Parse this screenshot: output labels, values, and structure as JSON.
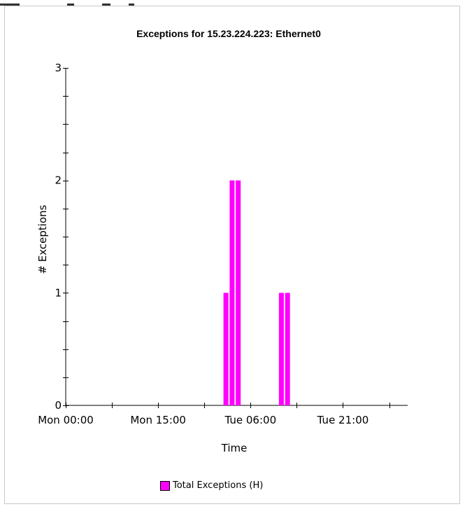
{
  "colors": {
    "bar": "#ff00ff",
    "axis": "#000000",
    "panel_border": "#c8c8c8"
  },
  "chart_data": {
    "type": "bar",
    "title": "Exceptions for 15.23.224.223: Ethernet0",
    "xlabel": "Time",
    "ylabel": "# Exceptions",
    "ylim": [
      0,
      3
    ],
    "xlim": [
      "Mon 00:00",
      "Wed 07:30"
    ],
    "x_tick_labels": [
      "Mon 00:00",
      "Mon 15:00",
      "Tue 06:00",
      "Tue 21:00"
    ],
    "y_tick_labels": [
      "0",
      "1",
      "2",
      "3"
    ],
    "grid": false,
    "legend_position": "bottom-center",
    "series": [
      {
        "name": "Total Exceptions (H)",
        "color": "#ff00ff",
        "x": [
          "Tue 02:00",
          "Tue 03:00",
          "Tue 04:00",
          "Tue 11:00",
          "Tue 12:00"
        ],
        "values": [
          1,
          2,
          2,
          1,
          1
        ]
      }
    ]
  }
}
